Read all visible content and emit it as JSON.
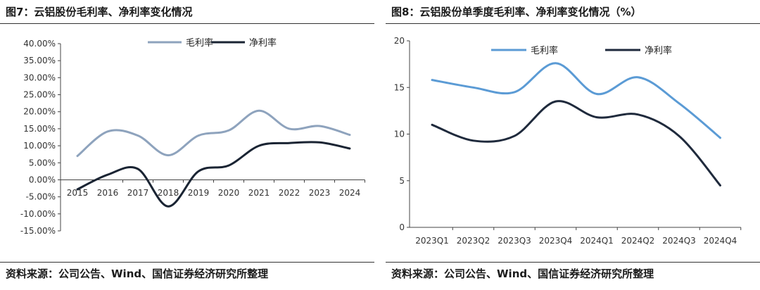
{
  "chart_data": [
    {
      "type": "line",
      "title": "图7：云铝股份毛利率、净利率变化情况",
      "source": "资料来源：公司公告、Wind、国信证券经济研究所整理",
      "categories": [
        "2015",
        "2016",
        "2017",
        "2018",
        "2019",
        "2020",
        "2021",
        "2022",
        "2023",
        "2024"
      ],
      "series": [
        {
          "name": "毛利率",
          "color": "#8ea3bd",
          "values": [
            7.0,
            14.2,
            13.0,
            7.2,
            13.0,
            14.5,
            20.3,
            15.0,
            15.8,
            13.2
          ]
        },
        {
          "name": "净利率",
          "color": "#1a2433",
          "values": [
            -2.8,
            1.5,
            3.2,
            -7.8,
            2.5,
            4.2,
            10.0,
            10.8,
            11.0,
            9.2
          ]
        }
      ],
      "yticks": [
        "40.00%",
        "35.00%",
        "30.00%",
        "25.00%",
        "20.00%",
        "15.00%",
        "10.00%",
        "5.00%",
        "0.00%",
        "-5.00%",
        "-10.00%",
        "-15.00%"
      ],
      "ylim": [
        -15,
        40
      ],
      "legend_position": "top"
    },
    {
      "type": "line",
      "title": "图8：云铝股份单季度毛利率、净利率变化情况（%）",
      "source": "资料来源：公司公告、Wind、国信证券经济研究所整理",
      "categories": [
        "2023Q1",
        "2023Q2",
        "2023Q3",
        "2023Q4",
        "2024Q1",
        "2024Q2",
        "2024Q3",
        "2024Q4"
      ],
      "series": [
        {
          "name": "毛利率",
          "color": "#5b9bd5",
          "values": [
            15.8,
            15.0,
            14.5,
            17.6,
            14.3,
            16.1,
            13.3,
            9.6
          ]
        },
        {
          "name": "净利率",
          "color": "#1f2a3c",
          "values": [
            11.0,
            9.3,
            9.8,
            13.5,
            11.8,
            12.1,
            9.8,
            4.5
          ]
        }
      ],
      "yticks": [
        "20",
        "15",
        "10",
        "5",
        "0"
      ],
      "ylim": [
        0,
        20
      ],
      "legend_position": "top"
    }
  ]
}
